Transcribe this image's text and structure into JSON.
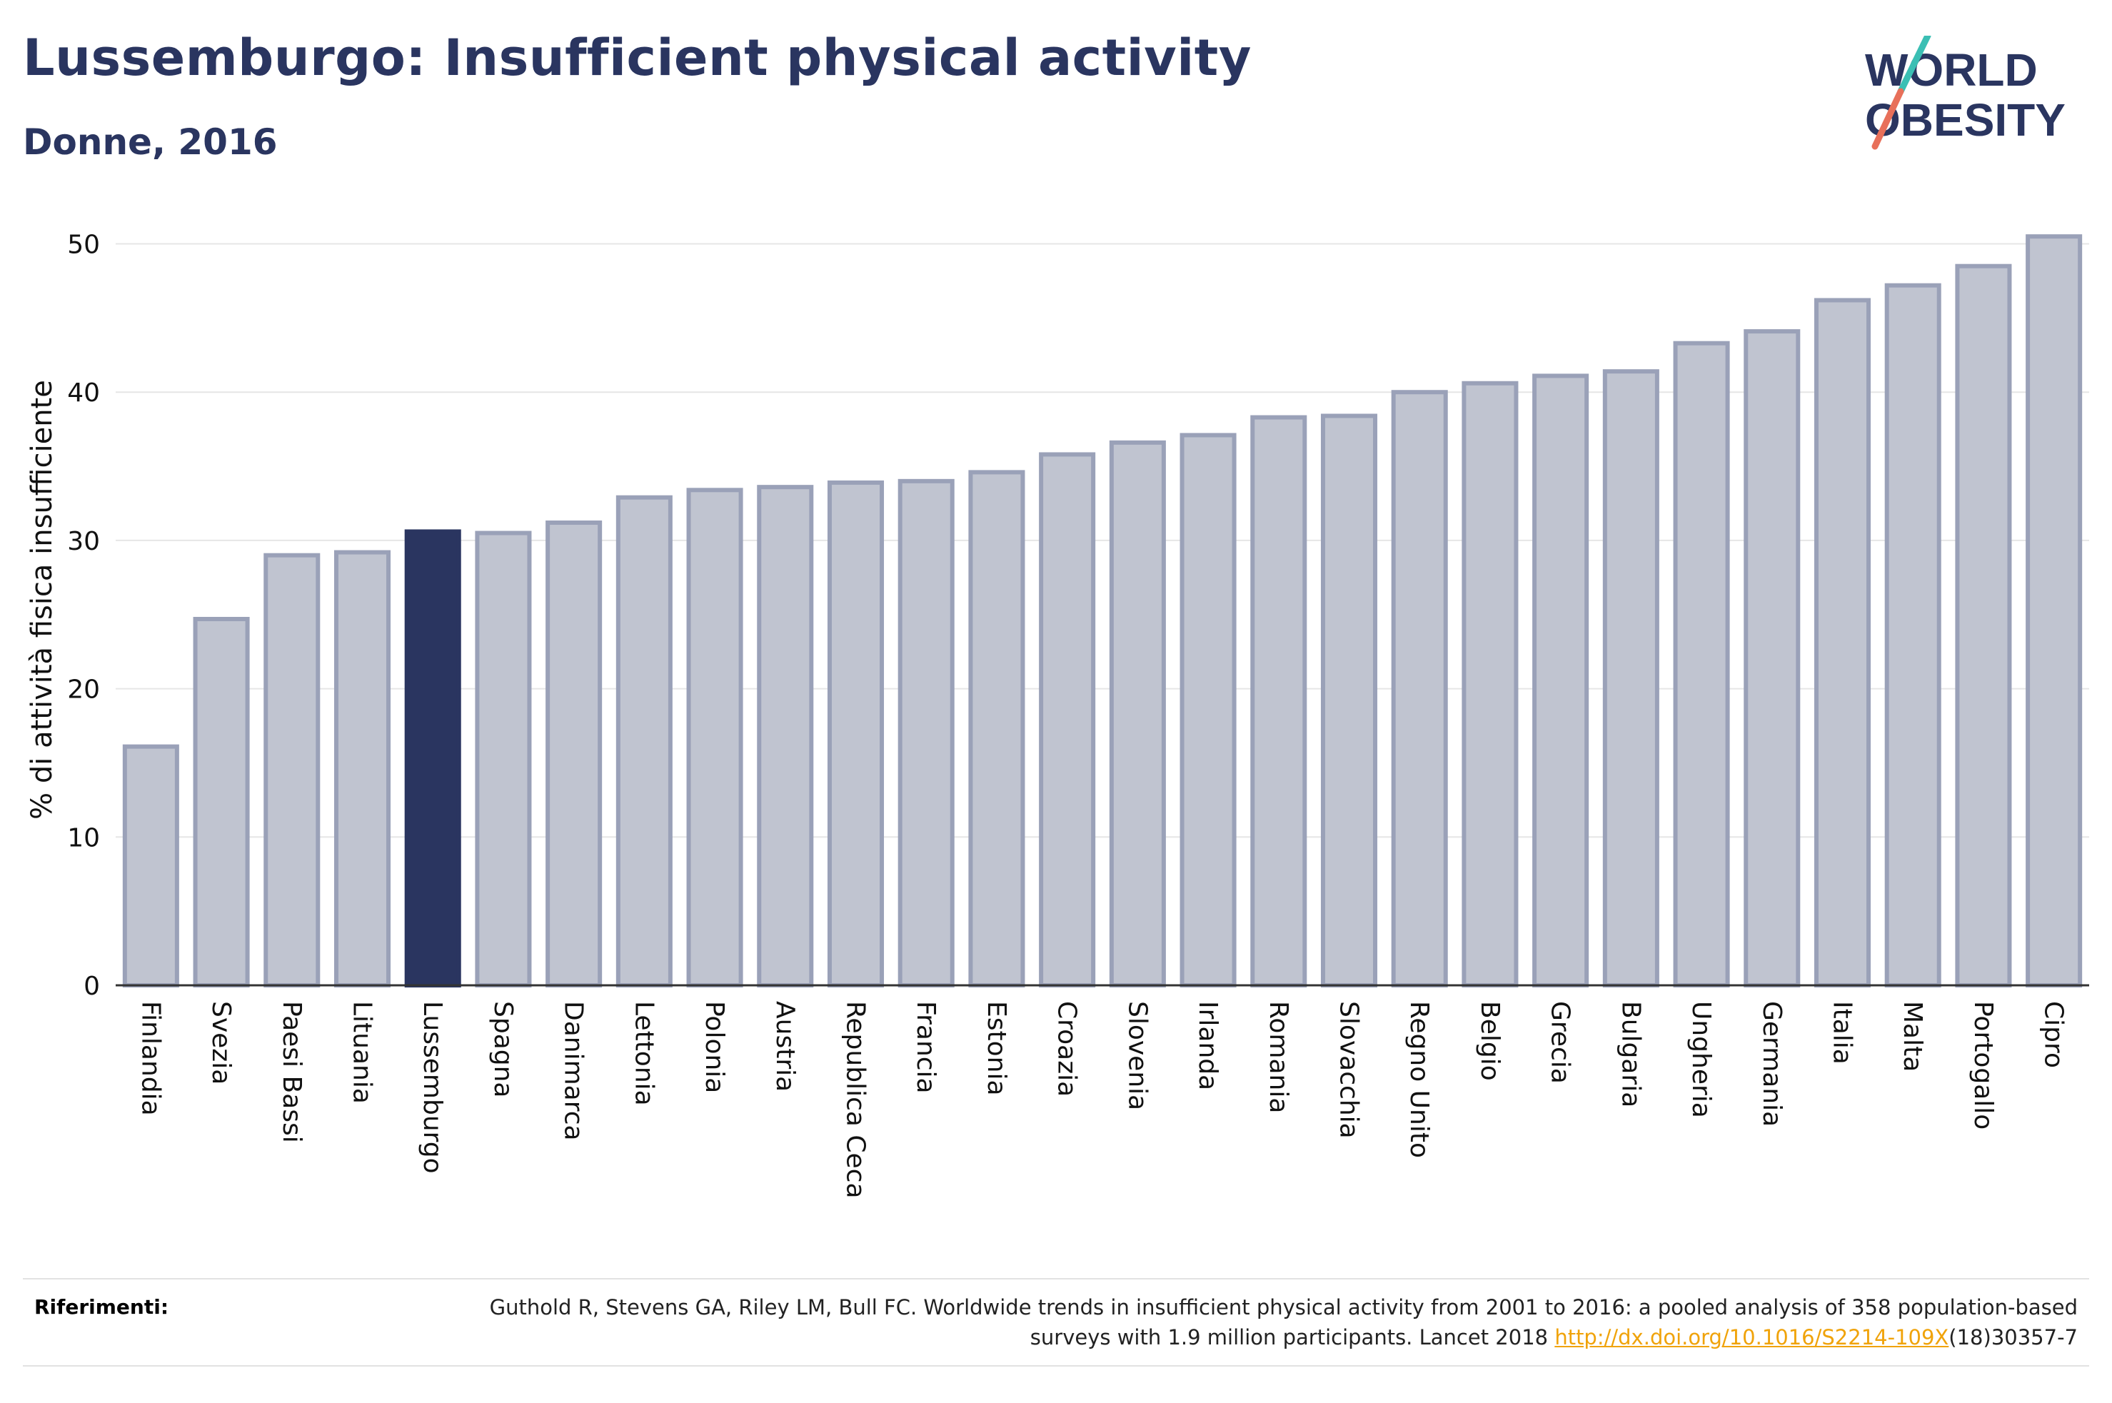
{
  "header": {
    "title": "Lussemburgo: Insufficient physical activity",
    "subtitle": "Donne, 2016"
  },
  "logo": {
    "line1": "WORLD",
    "line2": "OBESITY",
    "colors": {
      "text": "#2a3560",
      "slash_top": "#3bbfb4",
      "slash_bottom": "#e8705a"
    }
  },
  "colors": {
    "bar_fill": "#c0c4d0",
    "bar_stroke": "#9aa1b8",
    "highlight": "#2a3560",
    "grid": "#e6e6e6",
    "axis": "#333333"
  },
  "chart_data": {
    "type": "bar",
    "ylabel": "% di attività fisica insufficiente",
    "ylim": [
      0,
      52
    ],
    "yticks": [
      0,
      10,
      20,
      30,
      40,
      50
    ],
    "grid": true,
    "highlight": "Lussemburgo",
    "categories": [
      "Finlandia",
      "Svezia",
      "Paesi Bassi",
      "Lituania",
      "Lussemburgo",
      "Spagna",
      "Danimarca",
      "Lettonia",
      "Polonia",
      "Austria",
      "Republica Ceca",
      "Francia",
      "Estonia",
      "Croazia",
      "Slovenia",
      "Irlanda",
      "Romania",
      "Slovacchia",
      "Regno Unito",
      "Belgio",
      "Grecia",
      "Bulgaria",
      "Ungheria",
      "Germania",
      "Italia",
      "Malta",
      "Portogallo",
      "Cipro"
    ],
    "values": [
      16.1,
      24.7,
      29.0,
      29.2,
      30.6,
      30.5,
      31.2,
      32.9,
      33.4,
      33.6,
      33.9,
      34.0,
      34.6,
      35.8,
      36.6,
      37.1,
      38.3,
      38.4,
      40.0,
      40.6,
      41.1,
      41.4,
      43.3,
      44.1,
      46.2,
      47.2,
      48.5,
      50.5
    ]
  },
  "references": {
    "label": "Riferimenti:",
    "text_before": "Guthold R, Stevens GA, Riley LM, Bull FC. Worldwide trends in insufficient physical activity from 2001 to 2016: a pooled analysis of 358 population-based surveys with 1.9 million participants. Lancet 2018 ",
    "link": "http://dx.doi.org/10.1016/S2214-109X",
    "text_after": "(18)30357-7"
  }
}
